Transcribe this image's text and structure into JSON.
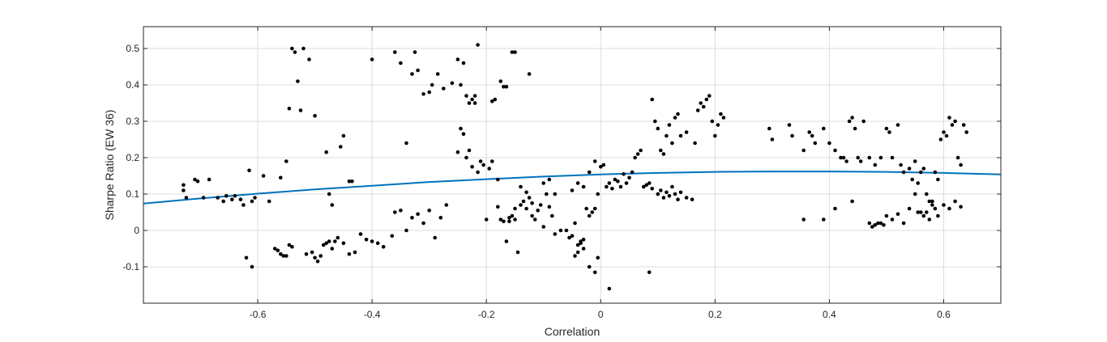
{
  "chart_data": {
    "type": "scatter",
    "title": "",
    "xlabel": "Correlation",
    "ylabel": "Sharpe Ratio (EW 36)",
    "xlim": [
      -0.8,
      0.7
    ],
    "ylim": [
      -0.2,
      0.56
    ],
    "grid": true,
    "legend": "none",
    "x_ticks": [
      -0.6,
      -0.4,
      -0.2,
      0,
      0.2,
      0.4,
      0.6
    ],
    "x_tick_labels": [
      "-0.6",
      "-0.4",
      "-0.2",
      "0",
      "0.2",
      "0.4",
      "0.6"
    ],
    "y_ticks": [
      -0.1,
      0,
      0.1,
      0.2,
      0.3,
      0.4,
      0.5
    ],
    "y_tick_labels": [
      "-0.1",
      "0",
      "0.1",
      "0.2",
      "0.3",
      "0.4",
      "0.5"
    ],
    "colors": {
      "points": "#000000",
      "fit_line": "#0072bd",
      "grid": "#dcdcdc",
      "axes": "#262626"
    },
    "fit_line": {
      "x": [
        -0.8,
        -0.7,
        -0.6,
        -0.5,
        -0.4,
        -0.3,
        -0.2,
        -0.1,
        0.0,
        0.1,
        0.2,
        0.3,
        0.4,
        0.5,
        0.6,
        0.7
      ],
      "y": [
        0.074,
        0.088,
        0.101,
        0.113,
        0.123,
        0.133,
        0.141,
        0.148,
        0.154,
        0.158,
        0.161,
        0.162,
        0.162,
        0.161,
        0.158,
        0.154
      ]
    },
    "points": {
      "x": [
        -0.73,
        -0.73,
        -0.725,
        -0.71,
        -0.705,
        -0.695,
        -0.685,
        -0.67,
        -0.66,
        -0.655,
        -0.645,
        -0.64,
        -0.63,
        -0.625,
        -0.615,
        -0.61,
        -0.605,
        -0.59,
        -0.56,
        -0.55,
        -0.545,
        -0.54,
        -0.535,
        -0.53,
        -0.525,
        -0.52,
        -0.51,
        -0.5,
        -0.48,
        -0.475,
        -0.47,
        -0.455,
        -0.45,
        -0.44,
        -0.435,
        -0.58,
        -0.57,
        -0.565,
        -0.56,
        -0.555,
        -0.55,
        -0.545,
        -0.54,
        -0.515,
        -0.505,
        -0.5,
        -0.495,
        -0.49,
        -0.485,
        -0.48,
        -0.475,
        -0.47,
        -0.465,
        -0.46,
        -0.45,
        -0.44,
        -0.43,
        -0.62,
        -0.61,
        -0.42,
        -0.41,
        -0.4,
        -0.39,
        -0.38,
        -0.365,
        -0.36,
        -0.35,
        -0.34,
        -0.33,
        -0.32,
        -0.31,
        -0.3,
        -0.29,
        -0.28,
        -0.27,
        -0.4,
        -0.36,
        -0.35,
        -0.34,
        -0.33,
        -0.325,
        -0.32,
        -0.31,
        -0.3,
        -0.295,
        -0.285,
        -0.275,
        -0.26,
        -0.25,
        -0.245,
        -0.24,
        -0.235,
        -0.23,
        -0.225,
        -0.22,
        -0.215,
        -0.175,
        -0.17,
        -0.165,
        -0.155,
        -0.15,
        -0.125,
        -0.25,
        -0.245,
        -0.24,
        -0.235,
        -0.23,
        -0.225,
        -0.22,
        -0.215,
        -0.21,
        -0.205,
        -0.195,
        -0.19,
        -0.185,
        -0.18,
        -0.175,
        -0.17,
        -0.165,
        -0.16,
        -0.155,
        -0.15,
        -0.145,
        -0.14,
        -0.135,
        -0.13,
        -0.125,
        -0.12,
        -0.115,
        -0.11,
        -0.105,
        -0.1,
        -0.095,
        -0.09,
        -0.085,
        -0.08,
        -0.07,
        -0.06,
        -0.055,
        -0.05,
        -0.045,
        -0.04,
        -0.035,
        -0.03,
        -0.025,
        -0.02,
        -0.015,
        -0.01,
        -0.005,
        -0.2,
        -0.19,
        -0.18,
        -0.16,
        -0.15,
        -0.14,
        -0.13,
        -0.12,
        -0.1,
        -0.09,
        -0.08,
        -0.05,
        -0.04,
        -0.03,
        -0.02,
        -0.01,
        0.0,
        0.005,
        0.01,
        0.015,
        0.02,
        0.025,
        0.03,
        0.035,
        0.04,
        0.045,
        0.05,
        0.055,
        0.06,
        0.065,
        0.07,
        0.075,
        0.08,
        0.085,
        0.09,
        0.1,
        0.105,
        0.11,
        0.115,
        0.12,
        0.125,
        0.13,
        0.135,
        0.14,
        0.15,
        0.16,
        -0.045,
        -0.04,
        -0.035,
        -0.03,
        -0.02,
        -0.01,
        -0.005,
        0.015,
        0.085,
        0.09,
        0.095,
        0.1,
        0.105,
        0.11,
        0.115,
        0.12,
        0.125,
        0.13,
        0.135,
        0.14,
        0.15,
        0.165,
        0.17,
        0.175,
        0.18,
        0.185,
        0.19,
        0.195,
        0.2,
        0.205,
        0.21,
        0.215,
        0.295,
        0.3,
        0.33,
        0.335,
        0.355,
        0.365,
        0.37,
        0.375,
        0.39,
        0.4,
        0.41,
        0.42,
        0.425,
        0.43,
        0.435,
        0.44,
        0.445,
        0.45,
        0.455,
        0.46,
        0.47,
        0.48,
        0.49,
        0.5,
        0.505,
        0.51,
        0.52,
        0.525,
        0.53,
        0.54,
        0.545,
        0.55,
        0.555,
        0.56,
        0.565,
        0.57,
        0.575,
        0.58,
        0.585,
        0.59,
        0.595,
        0.6,
        0.605,
        0.61,
        0.615,
        0.62,
        0.625,
        0.63,
        0.635,
        0.64,
        0.355,
        0.39,
        0.41,
        0.44,
        0.47,
        0.475,
        0.48,
        0.485,
        0.49,
        0.495,
        0.5,
        0.51,
        0.52,
        0.53,
        0.54,
        0.55,
        0.555,
        0.56,
        0.565,
        0.57,
        0.575,
        0.58,
        0.585,
        0.59,
        0.6,
        0.61,
        0.62,
        0.63
      ],
      "y": [
        0.11,
        0.125,
        0.09,
        0.14,
        0.135,
        0.09,
        0.14,
        0.09,
        0.08,
        0.095,
        0.085,
        0.095,
        0.085,
        0.07,
        0.165,
        0.08,
        0.09,
        0.15,
        0.145,
        0.19,
        0.335,
        0.5,
        0.49,
        0.41,
        0.33,
        0.5,
        0.47,
        0.315,
        0.215,
        0.1,
        0.07,
        0.23,
        0.26,
        0.135,
        0.135,
        0.08,
        -0.05,
        -0.055,
        -0.065,
        -0.07,
        -0.07,
        -0.04,
        -0.045,
        -0.065,
        -0.06,
        -0.075,
        -0.085,
        -0.07,
        -0.04,
        -0.035,
        -0.03,
        -0.05,
        -0.03,
        -0.02,
        -0.035,
        -0.065,
        -0.06,
        -0.075,
        -0.1,
        -0.01,
        -0.025,
        -0.03,
        -0.035,
        -0.045,
        -0.015,
        0.05,
        0.055,
        0.0,
        0.035,
        0.045,
        0.02,
        0.055,
        -0.02,
        0.035,
        0.07,
        0.47,
        0.49,
        0.46,
        0.24,
        0.43,
        0.49,
        0.44,
        0.375,
        0.38,
        0.4,
        0.43,
        0.39,
        0.405,
        0.47,
        0.4,
        0.46,
        0.37,
        0.35,
        0.36,
        0.37,
        0.51,
        0.41,
        0.395,
        0.395,
        0.49,
        0.49,
        0.43,
        0.215,
        0.28,
        0.265,
        0.2,
        0.22,
        0.175,
        0.35,
        0.16,
        0.19,
        0.18,
        0.17,
        0.355,
        0.36,
        0.065,
        0.03,
        0.025,
        -0.03,
        0.035,
        0.04,
        0.03,
        -0.06,
        0.07,
        0.08,
        0.06,
        0.09,
        0.04,
        0.03,
        0.055,
        0.07,
        0.01,
        0.1,
        0.065,
        0.04,
        -0.01,
        0.0,
        0.0,
        -0.02,
        -0.015,
        0.02,
        -0.04,
        -0.03,
        -0.05,
        0.06,
        0.04,
        0.05,
        0.06,
        0.1,
        0.03,
        0.19,
        0.14,
        0.025,
        0.06,
        0.12,
        0.105,
        0.075,
        0.13,
        0.14,
        0.1,
        0.11,
        0.13,
        0.12,
        0.16,
        0.19,
        0.175,
        0.18,
        0.12,
        0.13,
        0.115,
        0.14,
        0.135,
        0.12,
        0.155,
        0.13,
        0.145,
        0.16,
        0.2,
        0.21,
        0.22,
        0.12,
        0.125,
        0.13,
        0.115,
        0.1,
        0.11,
        0.09,
        0.105,
        0.095,
        0.12,
        0.1,
        0.085,
        0.105,
        0.09,
        0.085,
        -0.07,
        -0.06,
        -0.035,
        -0.025,
        -0.1,
        -0.115,
        -0.075,
        -0.16,
        -0.115,
        0.36,
        0.3,
        0.28,
        0.22,
        0.21,
        0.26,
        0.29,
        0.24,
        0.31,
        0.32,
        0.26,
        0.27,
        0.24,
        0.33,
        0.35,
        0.34,
        0.36,
        0.37,
        0.3,
        0.26,
        0.29,
        0.32,
        0.31,
        0.28,
        0.25,
        0.29,
        0.26,
        0.22,
        0.27,
        0.26,
        0.24,
        0.28,
        0.24,
        0.22,
        0.2,
        0.2,
        0.19,
        0.3,
        0.31,
        0.28,
        0.2,
        0.19,
        0.3,
        0.2,
        0.18,
        0.2,
        0.28,
        0.27,
        0.2,
        0.29,
        0.18,
        0.16,
        0.17,
        0.14,
        0.19,
        0.13,
        0.16,
        0.17,
        0.1,
        0.08,
        0.08,
        0.16,
        0.14,
        0.25,
        0.27,
        0.26,
        0.31,
        0.29,
        0.3,
        0.2,
        0.18,
        0.29,
        0.27,
        0.03,
        0.03,
        0.06,
        0.08,
        0.02,
        0.01,
        0.015,
        0.02,
        0.02,
        0.015,
        0.04,
        0.03,
        0.045,
        0.02,
        0.06,
        0.1,
        0.05,
        0.05,
        0.04,
        0.05,
        0.03,
        0.07,
        0.06,
        0.04,
        0.07,
        0.06,
        0.08,
        0.065
      ]
    }
  }
}
